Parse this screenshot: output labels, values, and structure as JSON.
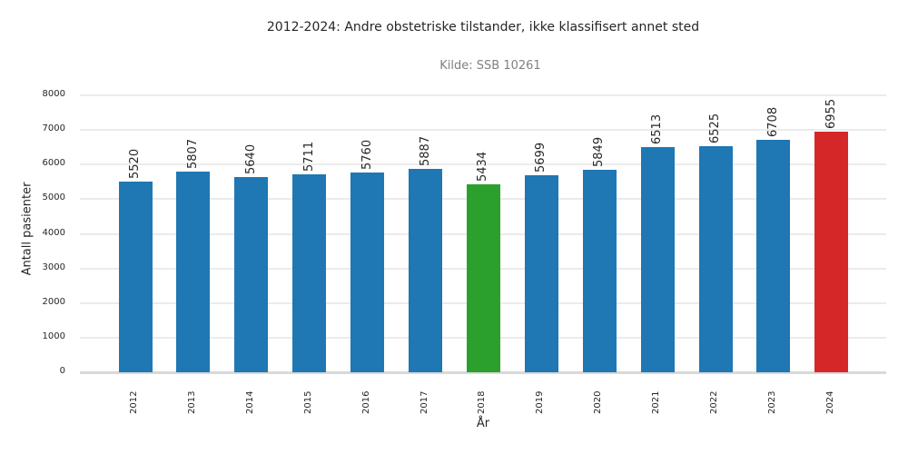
{
  "chart_data": {
    "type": "bar",
    "title": "2012-2024: Andre obstetriske tilstander, ikke klassifisert annet sted",
    "subtitle": "Kilde: SSB 10261",
    "xlabel": "År",
    "ylabel": "Antall pasienter",
    "ylim": [
      0,
      8000
    ],
    "yticks": [
      0,
      1000,
      2000,
      3000,
      4000,
      5000,
      6000,
      7000,
      8000
    ],
    "grid": true,
    "legend": null,
    "categories": [
      "2012",
      "2013",
      "2014",
      "2015",
      "2016",
      "2017",
      "2018",
      "2019",
      "2020",
      "2021",
      "2022",
      "2023",
      "2024"
    ],
    "values": [
      5520,
      5807,
      5640,
      5711,
      5760,
      5887,
      5434,
      5699,
      5849,
      6513,
      6525,
      6708,
      6955
    ],
    "colors": [
      "#1f77b4",
      "#1f77b4",
      "#1f77b4",
      "#1f77b4",
      "#1f77b4",
      "#1f77b4",
      "#2ca02c",
      "#1f77b4",
      "#1f77b4",
      "#1f77b4",
      "#1f77b4",
      "#1f77b4",
      "#d62728"
    ],
    "annotations": "Bar value labels rotated 90°; 2018 (minimum) highlighted green, 2024 (maximum) highlighted red"
  }
}
